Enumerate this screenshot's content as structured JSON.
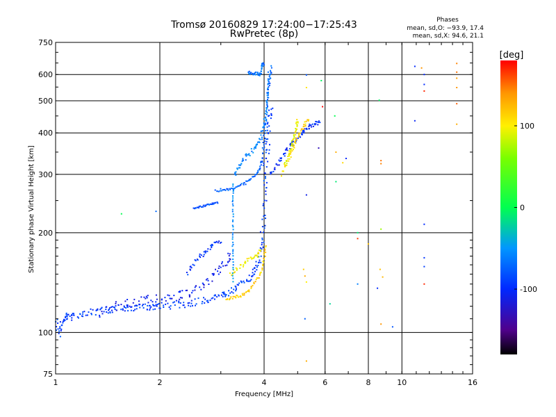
{
  "chart_data": {
    "type": "scatter",
    "title": "Tromsø 20160829 17:24:00−17:25:43",
    "subtitle": "RwPretec (8p)",
    "xlabel": "Frequency [MHz]",
    "ylabel": "Stationary phase Virtual Height [km]",
    "x_scale": "log",
    "y_scale": "log",
    "xlim": [
      1,
      16
    ],
    "ylim": [
      75,
      750
    ],
    "x_ticks": [
      1,
      2,
      4,
      6,
      8,
      10,
      16
    ],
    "y_ticks": [
      75,
      100,
      200,
      300,
      400,
      500,
      600,
      750
    ],
    "grid": true,
    "phases_header": "Phases",
    "stats": [
      "mean, sd,O: −93.9, 17.4",
      "mean, sd,X:  94.6, 21.1"
    ],
    "colorbar": {
      "label": "[deg]",
      "range": [
        -180,
        180
      ],
      "ticks": [
        100,
        0,
        -100
      ],
      "colormap": "rainbow"
    },
    "traces": [
      {
        "points": [
          [
            1.0,
            112
          ],
          [
            1.02,
            98
          ],
          [
            1.05,
            110
          ],
          [
            1.08,
            113
          ],
          [
            1.12,
            111
          ],
          [
            1.2,
            114
          ],
          [
            1.3,
            116
          ],
          [
            1.4,
            117
          ],
          [
            1.5,
            118
          ],
          [
            1.6,
            119
          ],
          [
            1.7,
            119
          ],
          [
            1.8,
            119
          ],
          [
            1.9,
            120
          ],
          [
            2.0,
            120
          ],
          [
            2.2,
            121
          ],
          [
            2.4,
            122
          ],
          [
            2.6,
            124
          ],
          [
            2.8,
            126
          ],
          [
            3.0,
            129
          ],
          [
            3.1,
            132
          ],
          [
            3.3,
            136
          ],
          [
            3.5,
            142
          ],
          [
            3.7,
            148
          ],
          [
            3.8,
            155
          ],
          [
            3.9,
            168
          ],
          [
            3.95,
            190
          ],
          [
            4.0,
            230
          ],
          [
            4.02,
            280
          ],
          [
            4.05,
            330
          ],
          [
            4.1,
            380
          ],
          [
            4.15,
            430
          ],
          [
            4.2,
            480
          ]
        ],
        "phase": -90,
        "spread": 0.05
      },
      {
        "points": [
          [
            1.3,
            114
          ],
          [
            1.5,
            120
          ],
          [
            1.7,
            124
          ],
          [
            1.9,
            126
          ],
          [
            2.1,
            126
          ],
          [
            2.3,
            130
          ],
          [
            2.5,
            133
          ],
          [
            2.7,
            140
          ],
          [
            2.9,
            150
          ],
          [
            3.1,
            160
          ],
          [
            3.2,
            170
          ]
        ],
        "phase": -110,
        "spread": 0.06
      },
      {
        "points": [
          [
            2.4,
            150
          ],
          [
            2.55,
            165
          ],
          [
            2.7,
            175
          ],
          [
            2.85,
            185
          ],
          [
            3.0,
            190
          ]
        ],
        "phase": -95,
        "spread": 0.03
      },
      {
        "points": [
          [
            3.1,
            126
          ],
          [
            3.3,
            128
          ],
          [
            3.5,
            130
          ],
          [
            3.7,
            137
          ],
          [
            3.9,
            150
          ],
          [
            4.0,
            165
          ],
          [
            4.05,
            185
          ]
        ],
        "phase": 115,
        "spread": 0.02
      },
      {
        "points": [
          [
            3.2,
            150
          ],
          [
            3.4,
            158
          ],
          [
            3.6,
            166
          ],
          [
            3.8,
            170
          ],
          [
            3.9,
            178
          ]
        ],
        "phase": 100,
        "spread": 0.03
      },
      {
        "points": [
          [
            2.9,
            268
          ],
          [
            3.1,
            270
          ],
          [
            3.3,
            272
          ],
          [
            3.5,
            280
          ],
          [
            3.7,
            292
          ],
          [
            3.85,
            305
          ],
          [
            3.95,
            330
          ],
          [
            4.0,
            380
          ],
          [
            4.05,
            450
          ],
          [
            4.1,
            520
          ],
          [
            4.15,
            580
          ],
          [
            4.2,
            640
          ]
        ],
        "phase": -75,
        "spread": 0.02
      },
      {
        "points": [
          [
            3.3,
            300
          ],
          [
            3.4,
            320
          ],
          [
            3.55,
            340
          ],
          [
            3.75,
            360
          ],
          [
            3.9,
            380
          ],
          [
            4.0,
            420
          ],
          [
            4.05,
            470
          ],
          [
            4.1,
            540
          ],
          [
            4.15,
            610
          ]
        ],
        "phase": -60,
        "spread": 0.03
      },
      {
        "points": [
          [
            4.15,
            300
          ],
          [
            4.35,
            320
          ],
          [
            4.55,
            345
          ],
          [
            4.75,
            365
          ],
          [
            4.95,
            380
          ],
          [
            5.15,
            400
          ],
          [
            5.35,
            415
          ],
          [
            5.55,
            425
          ],
          [
            5.8,
            435
          ]
        ],
        "phase": -100,
        "spread": 0.03
      },
      {
        "points": [
          [
            4.5,
            300
          ],
          [
            4.7,
            330
          ],
          [
            4.85,
            360
          ],
          [
            5.0,
            390
          ],
          [
            5.2,
            420
          ],
          [
            5.4,
            445
          ]
        ],
        "phase": 110,
        "spread": 0.03
      },
      {
        "points": [
          [
            4.6,
            320
          ],
          [
            4.75,
            350
          ],
          [
            4.85,
            380
          ],
          [
            4.95,
            410
          ],
          [
            5.0,
            440
          ]
        ],
        "phase": 95,
        "spread": 0.02
      },
      {
        "points": [
          [
            3.6,
            610
          ],
          [
            3.7,
            600
          ],
          [
            3.8,
            605
          ],
          [
            3.9,
            600
          ],
          [
            3.95,
            640
          ],
          [
            4.0,
            650
          ]
        ],
        "phase": -70,
        "spread": 0.02
      },
      {
        "points": [
          [
            2.5,
            237
          ],
          [
            2.65,
            240
          ],
          [
            2.8,
            244
          ],
          [
            2.95,
            247
          ]
        ],
        "phase": -80,
        "spread": 0.01
      },
      {
        "points": [
          [
            3.25,
            280
          ],
          [
            3.25,
            240
          ],
          [
            3.25,
            200
          ],
          [
            3.25,
            170
          ],
          [
            3.25,
            140
          ]
        ],
        "phase": -55,
        "spread": 0.01
      }
    ],
    "scatter_points": [
      {
        "x": 1.55,
        "y": 228,
        "phase": 0
      },
      {
        "x": 1.95,
        "y": 232,
        "phase": -70
      },
      {
        "x": 5.3,
        "y": 598,
        "phase": -80
      },
      {
        "x": 5.85,
        "y": 575,
        "phase": -5
      },
      {
        "x": 5.3,
        "y": 548,
        "phase": 105
      },
      {
        "x": 5.9,
        "y": 480,
        "phase": 180
      },
      {
        "x": 6.4,
        "y": 450,
        "phase": 0
      },
      {
        "x": 5.75,
        "y": 360,
        "phase": -130
      },
      {
        "x": 6.45,
        "y": 350,
        "phase": 130
      },
      {
        "x": 6.9,
        "y": 335,
        "phase": -100
      },
      {
        "x": 6.75,
        "y": 325,
        "phase": 110
      },
      {
        "x": 6.45,
        "y": 285,
        "phase": -10
      },
      {
        "x": 5.3,
        "y": 260,
        "phase": -110
      },
      {
        "x": 5.2,
        "y": 155,
        "phase": 115
      },
      {
        "x": 5.25,
        "y": 148,
        "phase": 130
      },
      {
        "x": 5.3,
        "y": 142,
        "phase": 100
      },
      {
        "x": 5.25,
        "y": 110,
        "phase": -75
      },
      {
        "x": 5.3,
        "y": 82,
        "phase": 130
      },
      {
        "x": 6.2,
        "y": 122,
        "phase": -20
      },
      {
        "x": 7.45,
        "y": 200,
        "phase": -10
      },
      {
        "x": 7.45,
        "y": 192,
        "phase": 165
      },
      {
        "x": 8.0,
        "y": 185,
        "phase": 120
      },
      {
        "x": 7.45,
        "y": 140,
        "phase": -60
      },
      {
        "x": 8.6,
        "y": 502,
        "phase": -5
      },
      {
        "x": 8.7,
        "y": 330,
        "phase": 150
      },
      {
        "x": 8.7,
        "y": 323,
        "phase": 145
      },
      {
        "x": 8.7,
        "y": 205,
        "phase": 70
      },
      {
        "x": 8.65,
        "y": 155,
        "phase": 120
      },
      {
        "x": 8.8,
        "y": 147,
        "phase": 125
      },
      {
        "x": 8.5,
        "y": 136,
        "phase": -100
      },
      {
        "x": 8.7,
        "y": 106,
        "phase": 140
      },
      {
        "x": 9.4,
        "y": 104,
        "phase": -80
      },
      {
        "x": 10.9,
        "y": 635,
        "phase": -100
      },
      {
        "x": 11.4,
        "y": 628,
        "phase": 140
      },
      {
        "x": 11.6,
        "y": 600,
        "phase": -100
      },
      {
        "x": 11.6,
        "y": 560,
        "phase": -100
      },
      {
        "x": 11.6,
        "y": 535,
        "phase": 170
      },
      {
        "x": 10.9,
        "y": 435,
        "phase": -105
      },
      {
        "x": 11.6,
        "y": 212,
        "phase": -100
      },
      {
        "x": 11.6,
        "y": 168,
        "phase": -95
      },
      {
        "x": 11.6,
        "y": 158,
        "phase": -90
      },
      {
        "x": 11.6,
        "y": 140,
        "phase": 170
      },
      {
        "x": 14.4,
        "y": 648,
        "phase": 145
      },
      {
        "x": 14.4,
        "y": 610,
        "phase": 150
      },
      {
        "x": 14.4,
        "y": 585,
        "phase": 135
      },
      {
        "x": 14.4,
        "y": 548,
        "phase": 140
      },
      {
        "x": 14.4,
        "y": 490,
        "phase": 155
      },
      {
        "x": 14.4,
        "y": 425,
        "phase": 130
      }
    ]
  }
}
